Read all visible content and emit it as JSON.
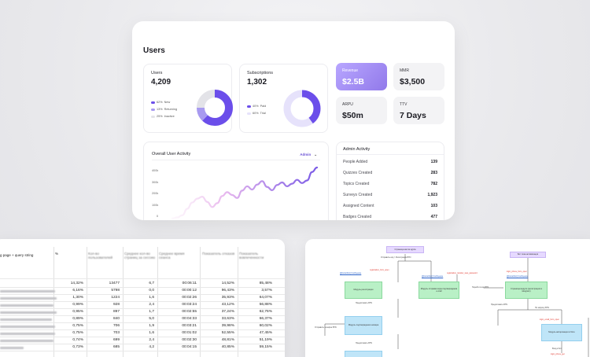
{
  "dashboard": {
    "title": "Users",
    "users": {
      "label": "Users",
      "value": "4,209",
      "legend": [
        {
          "pct": "62%",
          "name": "New",
          "color": "#6b4eea"
        },
        {
          "pct": "13%",
          "name": "Returning",
          "color": "#a89af0"
        },
        {
          "pct": "25%",
          "name": "Inactive",
          "color": "#e3e3e8"
        }
      ],
      "slices": [
        62,
        13,
        25
      ]
    },
    "subscriptions": {
      "label": "Subscriptions",
      "value": "1,302",
      "legend": [
        {
          "pct": "40%",
          "name": "Paid",
          "color": "#6b4eea"
        },
        {
          "pct": "60%",
          "name": "Trial",
          "color": "#e6e2fb"
        }
      ],
      "slices": [
        40,
        60
      ]
    },
    "kpis": [
      {
        "label": "Revenue",
        "value": "$2.5B",
        "accent": true
      },
      {
        "label": "MMR",
        "value": "$3,500",
        "accent": false
      },
      {
        "label": "ARPU",
        "value": "$50m",
        "accent": false
      },
      {
        "label": "TTV",
        "value": "7 Days",
        "accent": false
      }
    ],
    "activity": {
      "title": "Overall User Activity",
      "filter": "Admin",
      "y_ticks": [
        "400k",
        "300k",
        "200k",
        "100k",
        "0"
      ]
    },
    "admin": {
      "title": "Admin Activity",
      "rows": [
        {
          "label": "People Added",
          "value": "139"
        },
        {
          "label": "Quizzes Created",
          "value": "283"
        },
        {
          "label": "Topics Created",
          "value": "782"
        },
        {
          "label": "Surveys Created",
          "value": "1,923"
        },
        {
          "label": "Assigned Content",
          "value": "103"
        },
        {
          "label": "Badges Created",
          "value": "477"
        }
      ]
    }
  },
  "chart_data": {
    "type": "line",
    "title": "Overall User Activity",
    "ylim": [
      0,
      400000
    ],
    "y_ticks": [
      "400k",
      "300k",
      "200k",
      "100k",
      "0"
    ],
    "series": [
      {
        "values": [
          8000,
          15000,
          32000,
          82000,
          130000,
          160000,
          175000,
          135000,
          95000,
          125000,
          180000,
          210000,
          188000,
          165000,
          222000,
          255000,
          230000,
          268000,
          295000,
          250000,
          225000,
          265000,
          285000,
          255000,
          275000,
          305000,
          280000,
          300000,
          365000,
          420000
        ]
      }
    ]
  },
  "sheet": {
    "col1_header": "g page + query string",
    "col2_header": "%",
    "blurred_headers": [
      "Кол-во пользователей",
      "Среднее кол-во страниц за сессию",
      "Среднее время сеанса",
      "Показатель отказов",
      "Показатель вовлеченности"
    ],
    "rows": [
      {
        "name": "",
        "pct": "14,32%",
        "users": "13477",
        "pages": "6,7",
        "time": "00:06:11",
        "bounce": "14,52%",
        "engage": "85,48%"
      },
      {
        "name": "",
        "pct": "6,16%",
        "users": "5798",
        "pages": "0,0",
        "time": "00:00:12",
        "bounce": "96,43%",
        "engage": "3,57%"
      },
      {
        "name": "",
        "pct": "1,30%",
        "users": "1224",
        "pages": "1,6",
        "time": "00:02:26",
        "bounce": "35,93%",
        "engage": "64,07%"
      },
      {
        "name": "",
        "pct": "0,99%",
        "users": "928",
        "pages": "2,4",
        "time": "00:03:24",
        "bounce": "43,12%",
        "engage": "56,88%"
      },
      {
        "name": "",
        "pct": "0,95%",
        "users": "897",
        "pages": "1,7",
        "time": "00:02:55",
        "bounce": "37,24%",
        "engage": "62,76%"
      },
      {
        "name": "",
        "pct": "0,89%",
        "users": "840",
        "pages": "5,0",
        "time": "00:04:33",
        "bounce": "33,63%",
        "engage": "66,37%"
      },
      {
        "name": "",
        "pct": "0,75%",
        "users": "706",
        "pages": "1,9",
        "time": "00:03:21",
        "bounce": "39,98%",
        "engage": "60,02%"
      },
      {
        "name": "",
        "pct": "0,75%",
        "users": "703",
        "pages": "1,6",
        "time": "00:01:02",
        "bounce": "52,55%",
        "engage": "47,45%"
      },
      {
        "name": "",
        "pct": "0,74%",
        "users": "699",
        "pages": "2,4",
        "time": "00:02:30",
        "bounce": "48,81%",
        "engage": "51,19%"
      },
      {
        "name": "",
        "pct": "0,73%",
        "users": "685",
        "pages": "4,2",
        "time": "00:04:15",
        "bounce": "40,85%",
        "engage": "59,15%"
      }
    ]
  },
  "flow": {
    "nodes": [
      {
        "text": "Страница мечта курса",
        "color": "purple"
      },
      {
        "text": "Бот пока активизация",
        "color": "purple"
      },
      {
        "text": "Модуль регистрации",
        "color": "green"
      },
      {
        "text": "Модуль отправки кода подтверждения e-mail",
        "color": "green"
      },
      {
        "text": "Страница модуля (регистрация в telegram)",
        "color": "green"
      },
      {
        "text": "Модуль подтверждения номера",
        "color": "blue"
      },
      {
        "text": "Модуль авторизации в боте",
        "color": "blue"
      },
      {
        "text": "",
        "color": "blue"
      }
    ],
    "labels": {
      "register_btn": "Отправить код > Регистрация BTN",
      "provide_btn": "Предоставить BTN",
      "send_phone": "Отправить телефон BTN",
      "next_code": "Перейти в код BTN",
      "to_bot": "Вход в бот",
      "on_register": "По запросу BTN",
      "tg_link": "[@ismartbot] Сообщение",
      "red1": "registration_form_open",
      "red2": "registration_transfer_step_password",
      "red3": "login_phone_form_open",
      "red4": "login_email_form_open",
      "red5": "login_phone_get"
    }
  }
}
